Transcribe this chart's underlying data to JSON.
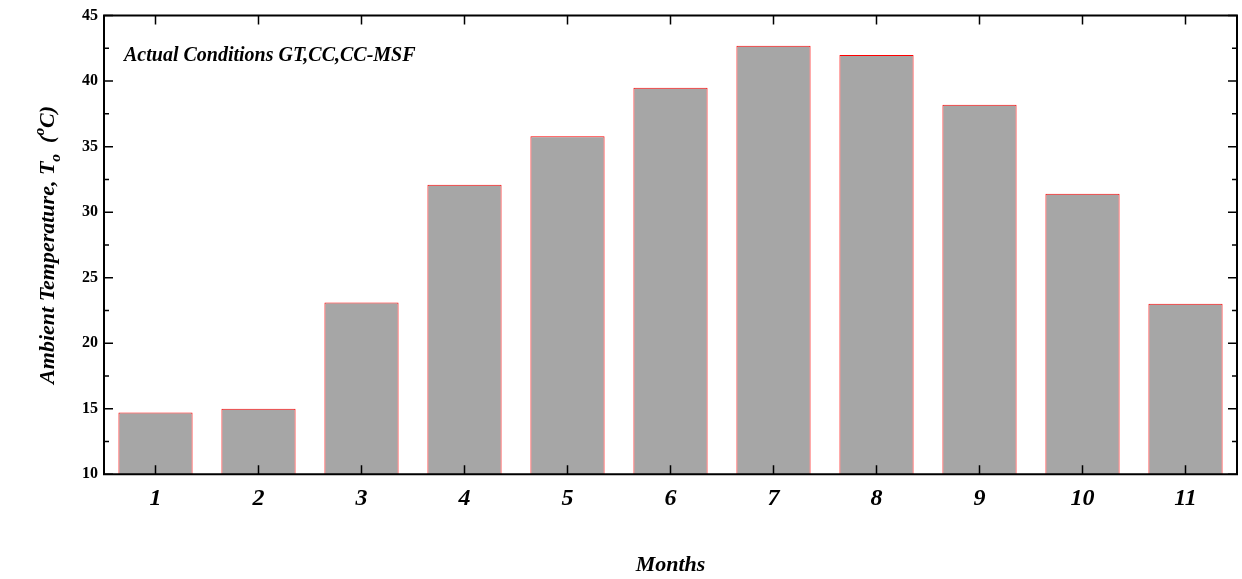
{
  "chart_data": {
    "type": "bar",
    "xlabel": "Months",
    "ylabel": "Ambient Temperature, T$_{o}$  ($^{o}$C)",
    "annotations": [
      "Actual Conditions GT,CC,CC-MSF"
    ],
    "categories": [
      "1",
      "2",
      "3",
      "4",
      "5",
      "6",
      "7",
      "8",
      "9",
      "10",
      "11"
    ],
    "series": [
      {
        "color": "#a6a6a6",
        "values": [
          14.7,
          15.0,
          23.1,
          32.1,
          35.8,
          39.5,
          42.7,
          42.0,
          38.2,
          31.4,
          23.0
        ]
      }
    ],
    "ylim": [
      10,
      45
    ],
    "yticks": [
      10,
      {
        "value": 12.5,
        "label": null
      },
      15,
      {
        "value": 17.5,
        "label": null
      },
      20,
      {
        "value": 22.5,
        "label": null
      },
      25,
      {
        "value": 27.5,
        "label": null
      },
      30,
      {
        "value": 32.5,
        "label": null
      },
      35,
      {
        "value": 37.5,
        "label": null
      },
      40,
      {
        "value": 42.5,
        "label": null
      },
      45
    ],
    "grid": false,
    "legend": false
  }
}
